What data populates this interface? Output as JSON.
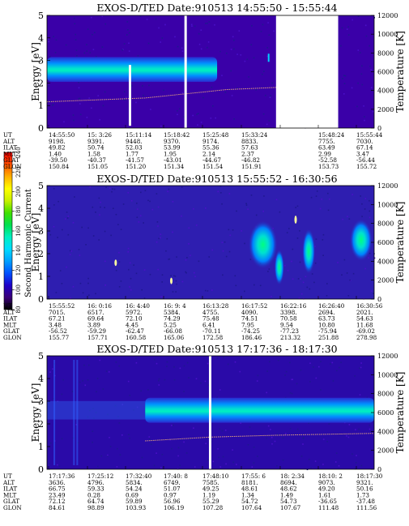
{
  "colorbar": {
    "label": "Second Harmonic Current",
    "ticks": [
      "80",
      "100",
      "120",
      "140",
      "160",
      "180",
      "200",
      "220",
      "240"
    ],
    "stops": [
      "#000000",
      "#3a0078",
      "#1e00c8",
      "#0050ff",
      "#00a0ff",
      "#00dcff",
      "#00f0c0",
      "#00e050",
      "#40e000",
      "#c8f000",
      "#ffff00",
      "#ffb000",
      "#ff5000",
      "#ff0000"
    ]
  },
  "chart_data": [
    {
      "type": "heatmap",
      "title": "EXOS-D/TED   Date:910513   14:55:50 - 15:55:44",
      "ylabel": "Energy [eV]",
      "y2label": "Temperature [K]",
      "yticks": [
        "0",
        "1",
        "2",
        "3",
        "4",
        "5"
      ],
      "y2ticks": [
        "0",
        "2000",
        "4000",
        "6000",
        "8000",
        "10000",
        "12000"
      ],
      "ylim": [
        0,
        5
      ],
      "y2lim": [
        0,
        12000
      ],
      "background": "#3a00a8",
      "band": {
        "center_eV": 2.6,
        "width_eV": 1.1
      },
      "temperature_trace": [
        [
          0,
          2800
        ],
        [
          0.3,
          3200
        ],
        [
          0.55,
          4100
        ],
        [
          0.75,
          4400
        ]
      ],
      "gaps": [
        0.46,
        0.58,
        0.815
      ],
      "rows": [
        {
          "label": "UT",
          "values": [
            "14:55:50",
            "15: 3:26",
            "15:11:14",
            "15:18:42",
            "15:25:48",
            "15:33:24",
            "",
            "15:48:24",
            "15:55:44"
          ]
        },
        {
          "label": "ALT",
          "values": [
            "9198.",
            "9391.",
            "9448.",
            "9370.",
            "9174.",
            "8833.",
            "",
            "7755.",
            "7030."
          ]
        },
        {
          "label": "ILAT",
          "values": [
            "49.82",
            "50.74",
            "52.03",
            "53.99",
            "55.36",
            "57.63",
            "",
            "63.49",
            "67.14"
          ]
        },
        {
          "label": "MLT",
          "values": [
            "1.40",
            "1.58",
            "1.77",
            "1.95",
            "2.14",
            "2.37",
            "",
            "2.99",
            "3.47"
          ]
        },
        {
          "label": "GLAT",
          "values": [
            "-39.50",
            "-40.37",
            "-41.57",
            "-43.01",
            "-44.67",
            "-46.82",
            "",
            "-52.58",
            "-56.44"
          ]
        },
        {
          "label": "GLON",
          "values": [
            "150.84",
            "151.05",
            "151.20",
            "151.34",
            "151.54",
            "151.91",
            "",
            "153.73",
            "155.72"
          ]
        }
      ]
    },
    {
      "type": "heatmap",
      "title": "EXOS-D/TED   Date:910513   15:55:52 - 16:30:56",
      "ylabel": "Energy [eV]",
      "y2label": "Temperature [K]",
      "yticks": [
        "0",
        "1",
        "2",
        "3",
        "4",
        "5"
      ],
      "y2ticks": [
        "0",
        "2000",
        "4000",
        "6000",
        "8000",
        "10000",
        "12000"
      ],
      "ylim": [
        0,
        5
      ],
      "y2lim": [
        0,
        12000
      ],
      "background": "#2e1eb0",
      "band": {
        "center_eV": 2.5,
        "width_eV": 0
      },
      "temperature_trace": [],
      "gaps": [],
      "rows": [
        {
          "label": "UT",
          "values": [
            "15:55:52",
            "16: 0:16",
            "16: 4:40",
            "16: 9: 4",
            "16:13:28",
            "16:17:52",
            "16:22:16",
            "16:26:40",
            "16:30:56"
          ]
        },
        {
          "label": "ALT",
          "values": [
            "7015.",
            "6517.",
            "5972.",
            "5384.",
            "4755.",
            "4090.",
            "3398.",
            "2694.",
            "2021."
          ]
        },
        {
          "label": "ILAT",
          "values": [
            "67.21",
            "69.64",
            "72.10",
            "74.29",
            "75.48",
            "74.51",
            "70.58",
            "63.73",
            "54.63"
          ]
        },
        {
          "label": "MLT",
          "values": [
            "3.48",
            "3.89",
            "4.45",
            "5.25",
            "6.41",
            "7.95",
            "9.54",
            "10.80",
            "11.68"
          ]
        },
        {
          "label": "GLAT",
          "values": [
            "-56.52",
            "-59.29",
            "-62.47",
            "-66.08",
            "-70.11",
            "-74.25",
            "-77.23",
            "-75.94",
            "-69.02"
          ]
        },
        {
          "label": "GLON",
          "values": [
            "155.77",
            "157.71",
            "160.58",
            "165.06",
            "172.58",
            "186.46",
            "213.32",
            "251.88",
            "278.98"
          ]
        }
      ]
    },
    {
      "type": "heatmap",
      "title": "EXOS-D/TED   Date:910513   17:17:36 - 18:17:30",
      "ylabel": "Energy [eV]",
      "y2label": "Temperature [K]",
      "yticks": [
        "0",
        "1",
        "2",
        "3",
        "4",
        "5"
      ],
      "y2ticks": [
        "0",
        "2000",
        "4000",
        "6000",
        "8000",
        "10000",
        "12000"
      ],
      "ylim": [
        0,
        5
      ],
      "y2lim": [
        0,
        12000
      ],
      "background": "#2a0aa8",
      "band": {
        "center_eV": 2.6,
        "width_eV": 1.1
      },
      "temperature_trace": [
        [
          0.3,
          3000
        ],
        [
          0.5,
          3400
        ],
        [
          0.7,
          3600
        ],
        [
          1,
          3800
        ]
      ],
      "gaps": [
        0.495
      ],
      "rows": [
        {
          "label": "UT",
          "values": [
            "17:17:36",
            "17:25:12",
            "17:32:40",
            "17:40: 8",
            "17:48:10",
            "17:55: 6",
            "18: 2:34",
            "18:10: 2",
            "18:17:30"
          ]
        },
        {
          "label": "ALT",
          "values": [
            "3636.",
            "4796.",
            "5834.",
            "6749.",
            "7585.",
            "8181.",
            "8694.",
            "9073.",
            "9321."
          ]
        },
        {
          "label": "ILAT",
          "values": [
            "66.75",
            "59.33",
            "54.24",
            "51.07",
            "49.25",
            "48.61",
            "48.62",
            "49.20",
            "50.16"
          ]
        },
        {
          "label": "MLT",
          "values": [
            "23.49",
            "0.28",
            "0.69",
            "0.97",
            "1.19",
            "1.34",
            "1.49",
            "1.61",
            "1.73"
          ]
        },
        {
          "label": "GLAT",
          "values": [
            "72.12",
            "64.74",
            "59.89",
            "56.96",
            "55.29",
            "54.72",
            "54.73",
            "-36.65",
            "-37.48"
          ]
        },
        {
          "label": "GLON",
          "values": [
            "84.61",
            "98.89",
            "103.93",
            "106.19",
            "107.28",
            "107.64",
            "107.67",
            "111.48",
            "111.56"
          ]
        }
      ]
    }
  ]
}
